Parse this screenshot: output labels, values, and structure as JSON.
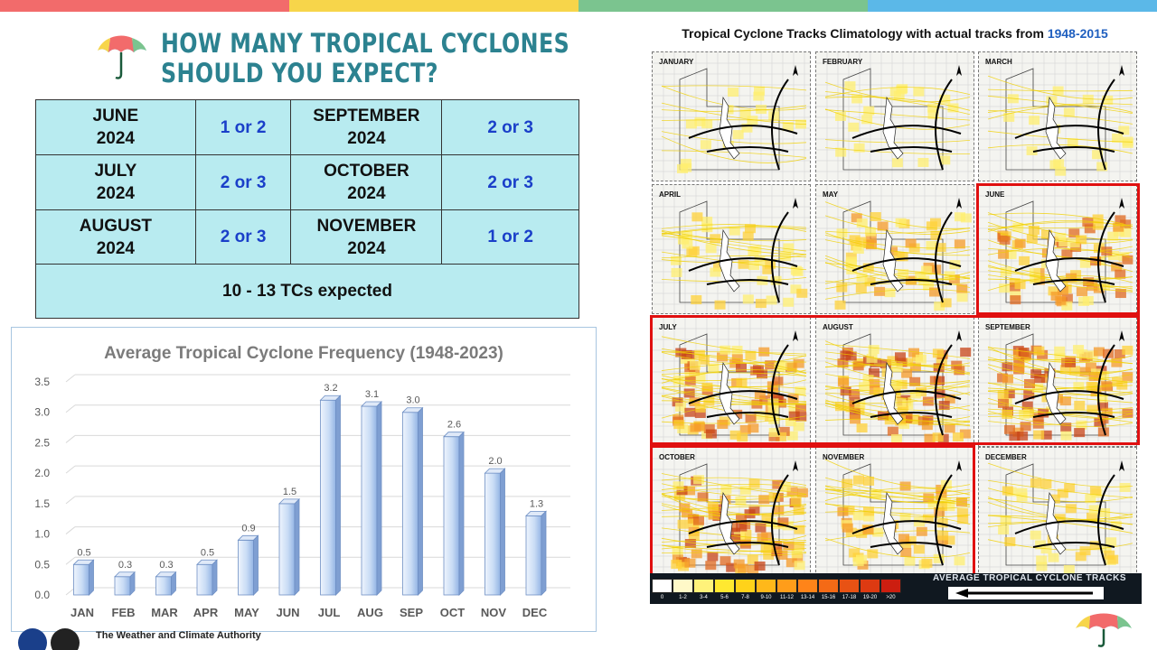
{
  "header": {
    "title_line1": "HOW MANY TROPICAL CYCLONES",
    "title_line2": "SHOULD YOU EXPECT?",
    "colors": {
      "bar1": "#f26b6b",
      "bar2": "#f7d54a",
      "bar3": "#7bc48f",
      "bar4": "#5bb8e8",
      "title": "#2c8290"
    }
  },
  "forecast_table": {
    "rows": [
      {
        "month_a": "JUNE",
        "year_a": "2024",
        "value_a": "1 or 2",
        "month_b": "SEPTEMBER",
        "year_b": "2024",
        "value_b": "2 or 3"
      },
      {
        "month_a": "JULY",
        "year_a": "2024",
        "value_a": "2 or 3",
        "month_b": "OCTOBER",
        "year_b": "2024",
        "value_b": "2 or 3"
      },
      {
        "month_a": "AUGUST",
        "year_a": "2024",
        "value_a": "2 or 3",
        "month_b": "NOVEMBER",
        "year_b": "2024",
        "value_b": "1 or 2"
      }
    ],
    "total": "10 - 13 TCs expected"
  },
  "chart_data": {
    "type": "bar",
    "title": "Average Tropical Cyclone Frequency (1948-2023)",
    "categories": [
      "JAN",
      "FEB",
      "MAR",
      "APR",
      "MAY",
      "JUN",
      "JUL",
      "AUG",
      "SEP",
      "OCT",
      "NOV",
      "DEC"
    ],
    "values": [
      0.5,
      0.3,
      0.3,
      0.5,
      0.9,
      1.5,
      3.2,
      3.1,
      3.0,
      2.6,
      2.0,
      1.3
    ],
    "data_labels": [
      "0.5",
      "0.3",
      "0.3",
      "0.5",
      "0.9",
      "1.5",
      "3.2",
      "3.1",
      "3.0",
      "2.6",
      "2.0",
      "1.3"
    ],
    "ylim": [
      0,
      3.5
    ],
    "yticks": [
      "0.0",
      "0.5",
      "1.0",
      "1.5",
      "2.0",
      "2.5",
      "3.0",
      "3.5"
    ],
    "grid": true,
    "bar_color": "#c9dcf5"
  },
  "maps": {
    "title_prefix": "Tropical Cyclone Tracks Climatology with actual tracks from ",
    "title_range": "1948-2015",
    "panels": [
      "JANUARY",
      "FEBRUARY",
      "MARCH",
      "APRIL",
      "MAY",
      "JUNE",
      "JULY",
      "AUGUST",
      "SEPTEMBER",
      "OCTOBER",
      "NOVEMBER",
      "DECEMBER"
    ],
    "legend": {
      "labels": [
        "0",
        "1-2",
        "3-4",
        "5-6",
        "7-8",
        "9-10",
        "11-12",
        "13-14",
        "15-16",
        "17-18",
        "19-20",
        ">20"
      ],
      "colors": [
        "#ffffff",
        "#fff9c8",
        "#fff27a",
        "#ffe830",
        "#ffd21a",
        "#ffb81a",
        "#ff9d1a",
        "#ff8419",
        "#f46a16",
        "#e85214",
        "#dd3a12",
        "#cc1e10"
      ],
      "title": "AVERAGE TROPICAL CYCLONE TRACKS"
    }
  },
  "footer": {
    "tagline": "The Weather and Climate Authority"
  }
}
